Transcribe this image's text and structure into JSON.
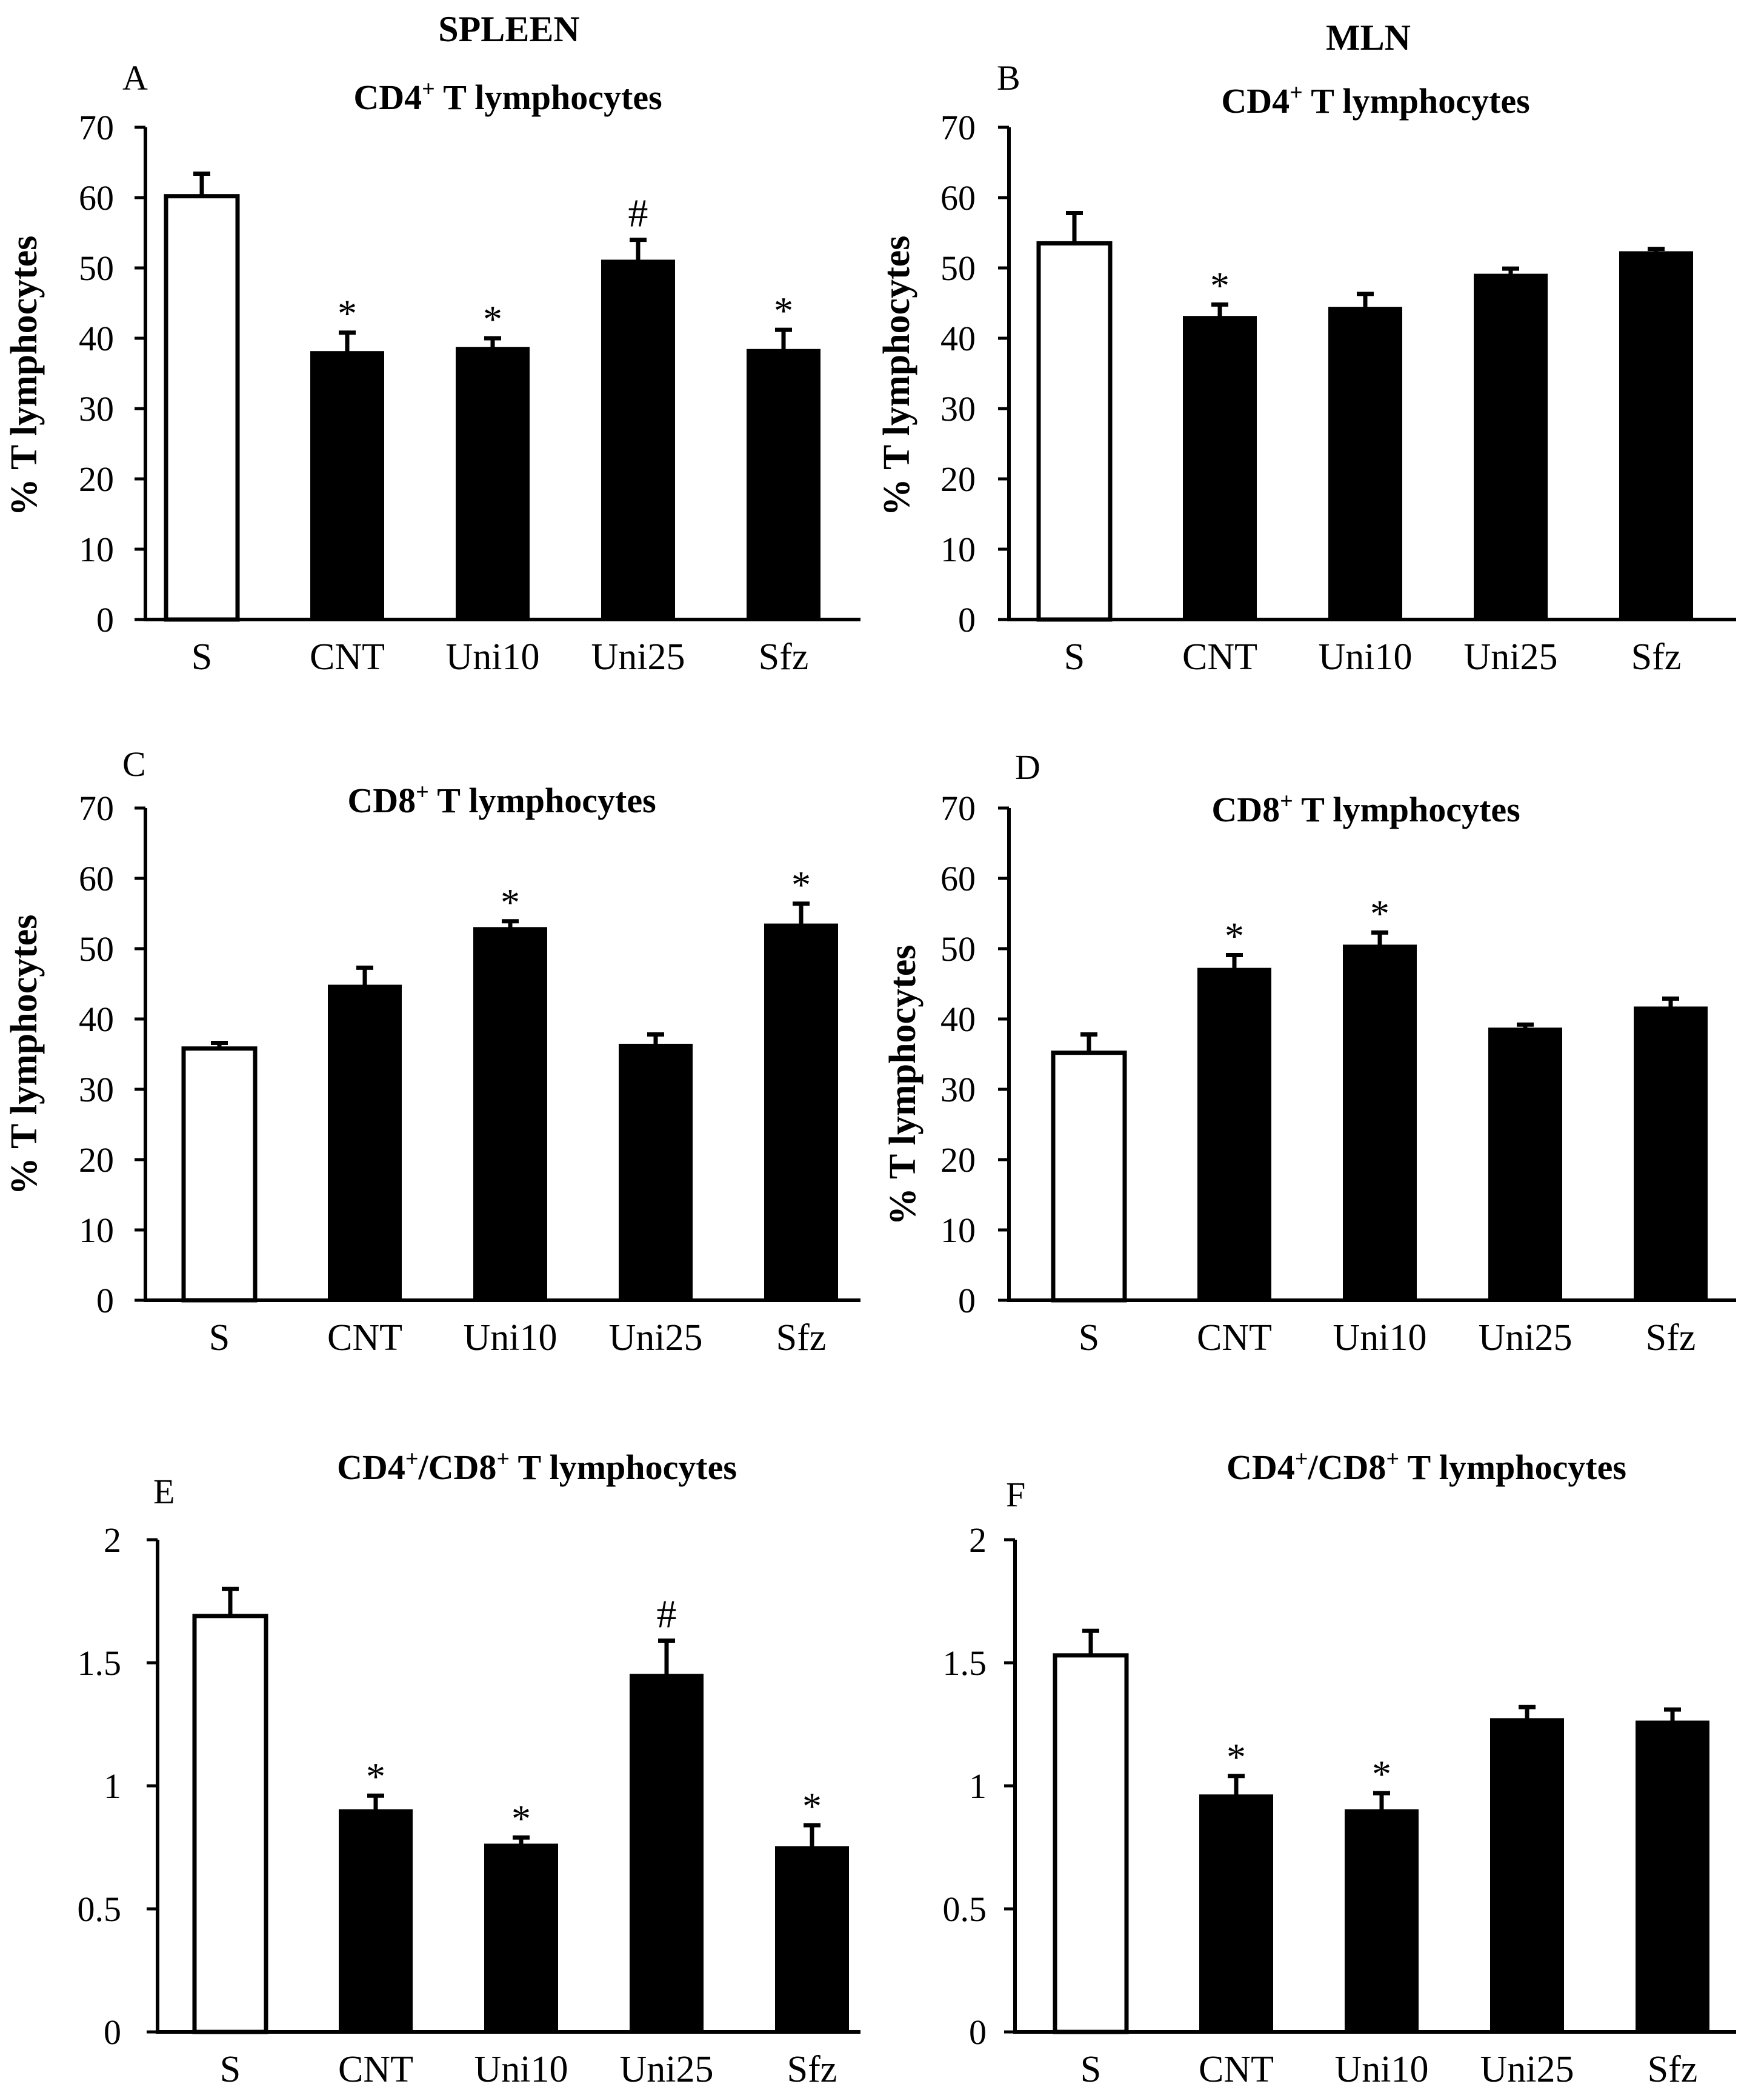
{
  "columns": {
    "left": "SPLEEN",
    "right": "MLN"
  },
  "chart_data": [
    {
      "id": "A",
      "letter": "A",
      "type": "bar",
      "title": "CD4",
      "title_sup": "+",
      "title_rest": " T lymphocytes",
      "ylabel": "% T lymphocytes",
      "ylim": [
        0,
        70
      ],
      "yticks": [
        "0",
        "10",
        "20",
        "30",
        "40",
        "50",
        "60",
        "70"
      ],
      "categories": [
        "S",
        "CNT",
        "Uni10",
        "Uni25",
        "Sfz"
      ],
      "values": [
        60.2,
        38.0,
        38.6,
        51.0,
        38.3
      ],
      "errors": [
        3.2,
        2.8,
        1.4,
        3.0,
        2.9
      ],
      "fill": [
        "#ffffff",
        "#000000",
        "#000000",
        "#000000",
        "#000000"
      ],
      "annotations": [
        "",
        "*",
        "*",
        "#",
        "*"
      ]
    },
    {
      "id": "B",
      "letter": "B",
      "type": "bar",
      "title": "CD4",
      "title_sup": "+",
      "title_rest": " T lymphocytes",
      "ylabel": "% T lymphocytes",
      "ylim": [
        0,
        70
      ],
      "yticks": [
        "0",
        "10",
        "20",
        "30",
        "40",
        "50",
        "60",
        "70"
      ],
      "categories": [
        "S",
        "CNT",
        "Uni10",
        "Uni25",
        "Sfz"
      ],
      "values": [
        53.5,
        43.0,
        44.3,
        49.0,
        52.2
      ],
      "errors": [
        4.3,
        1.8,
        2.0,
        0.9,
        0.5
      ],
      "fill": [
        "#ffffff",
        "#000000",
        "#000000",
        "#000000",
        "#000000"
      ],
      "annotations": [
        "",
        "*",
        "",
        "",
        ""
      ]
    },
    {
      "id": "C",
      "letter": "C",
      "type": "bar",
      "title": "CD8",
      "title_sup": "+",
      "title_rest": " T lymphocytes",
      "ylabel": "% T lymphocytes",
      "ylim": [
        0,
        70
      ],
      "yticks": [
        "0",
        "10",
        "20",
        "30",
        "40",
        "50",
        "60",
        "70"
      ],
      "categories": [
        "S",
        "CNT",
        "Uni10",
        "Uni25",
        "Sfz"
      ],
      "values": [
        35.8,
        44.7,
        52.9,
        36.3,
        53.4
      ],
      "errors": [
        0.8,
        2.6,
        1.0,
        1.5,
        3.0
      ],
      "fill": [
        "#ffffff",
        "#000000",
        "#000000",
        "#000000",
        "#000000"
      ],
      "annotations": [
        "",
        "",
        "*",
        "",
        "*"
      ]
    },
    {
      "id": "D",
      "letter": "D",
      "type": "bar",
      "title": "CD8",
      "title_sup": "+",
      "title_rest": " T lymphocytes",
      "ylabel": "% T lymphocytes",
      "ylim": [
        0,
        70
      ],
      "yticks": [
        "0",
        "10",
        "20",
        "30",
        "40",
        "50",
        "60",
        "70"
      ],
      "categories": [
        "S",
        "CNT",
        "Uni10",
        "Uni25",
        "Sfz"
      ],
      "values": [
        35.2,
        47.1,
        50.4,
        38.6,
        41.6
      ],
      "errors": [
        2.6,
        2.0,
        1.9,
        0.6,
        1.3
      ],
      "fill": [
        "#ffffff",
        "#000000",
        "#000000",
        "#000000",
        "#000000"
      ],
      "annotations": [
        "",
        "*",
        "*",
        "",
        ""
      ]
    },
    {
      "id": "E",
      "letter": "E",
      "type": "bar",
      "title": "CD4",
      "title_sup": "+",
      "title_rest": "/CD8",
      "title_sup2": "+",
      "title_rest2": " T lymphocytes",
      "ylabel": "",
      "ylim": [
        0,
        2
      ],
      "yticks": [
        "0",
        "0.5",
        "1",
        "1.5",
        "2"
      ],
      "categories": [
        "S",
        "CNT",
        "Uni10",
        "Uni25",
        "Sfz"
      ],
      "values": [
        1.69,
        0.9,
        0.76,
        1.45,
        0.75
      ],
      "errors": [
        0.11,
        0.06,
        0.03,
        0.14,
        0.09
      ],
      "fill": [
        "#ffffff",
        "#000000",
        "#000000",
        "#000000",
        "#000000"
      ],
      "annotations": [
        "",
        "*",
        "*",
        "#",
        "*"
      ]
    },
    {
      "id": "F",
      "letter": "F",
      "type": "bar",
      "title": "CD4",
      "title_sup": "+",
      "title_rest": "/CD8",
      "title_sup2": "+",
      "title_rest2": " T lymphocytes",
      "ylabel": "",
      "ylim": [
        0,
        2
      ],
      "yticks": [
        "0",
        "0.5",
        "1",
        "1.5",
        "2"
      ],
      "categories": [
        "S",
        "CNT",
        "Uni10",
        "Uni25",
        "Sfz"
      ],
      "values": [
        1.53,
        0.96,
        0.9,
        1.27,
        1.26
      ],
      "errors": [
        0.1,
        0.08,
        0.07,
        0.05,
        0.05
      ],
      "fill": [
        "#ffffff",
        "#000000",
        "#000000",
        "#000000",
        "#000000"
      ],
      "annotations": [
        "",
        "*",
        "*",
        "",
        ""
      ]
    }
  ]
}
